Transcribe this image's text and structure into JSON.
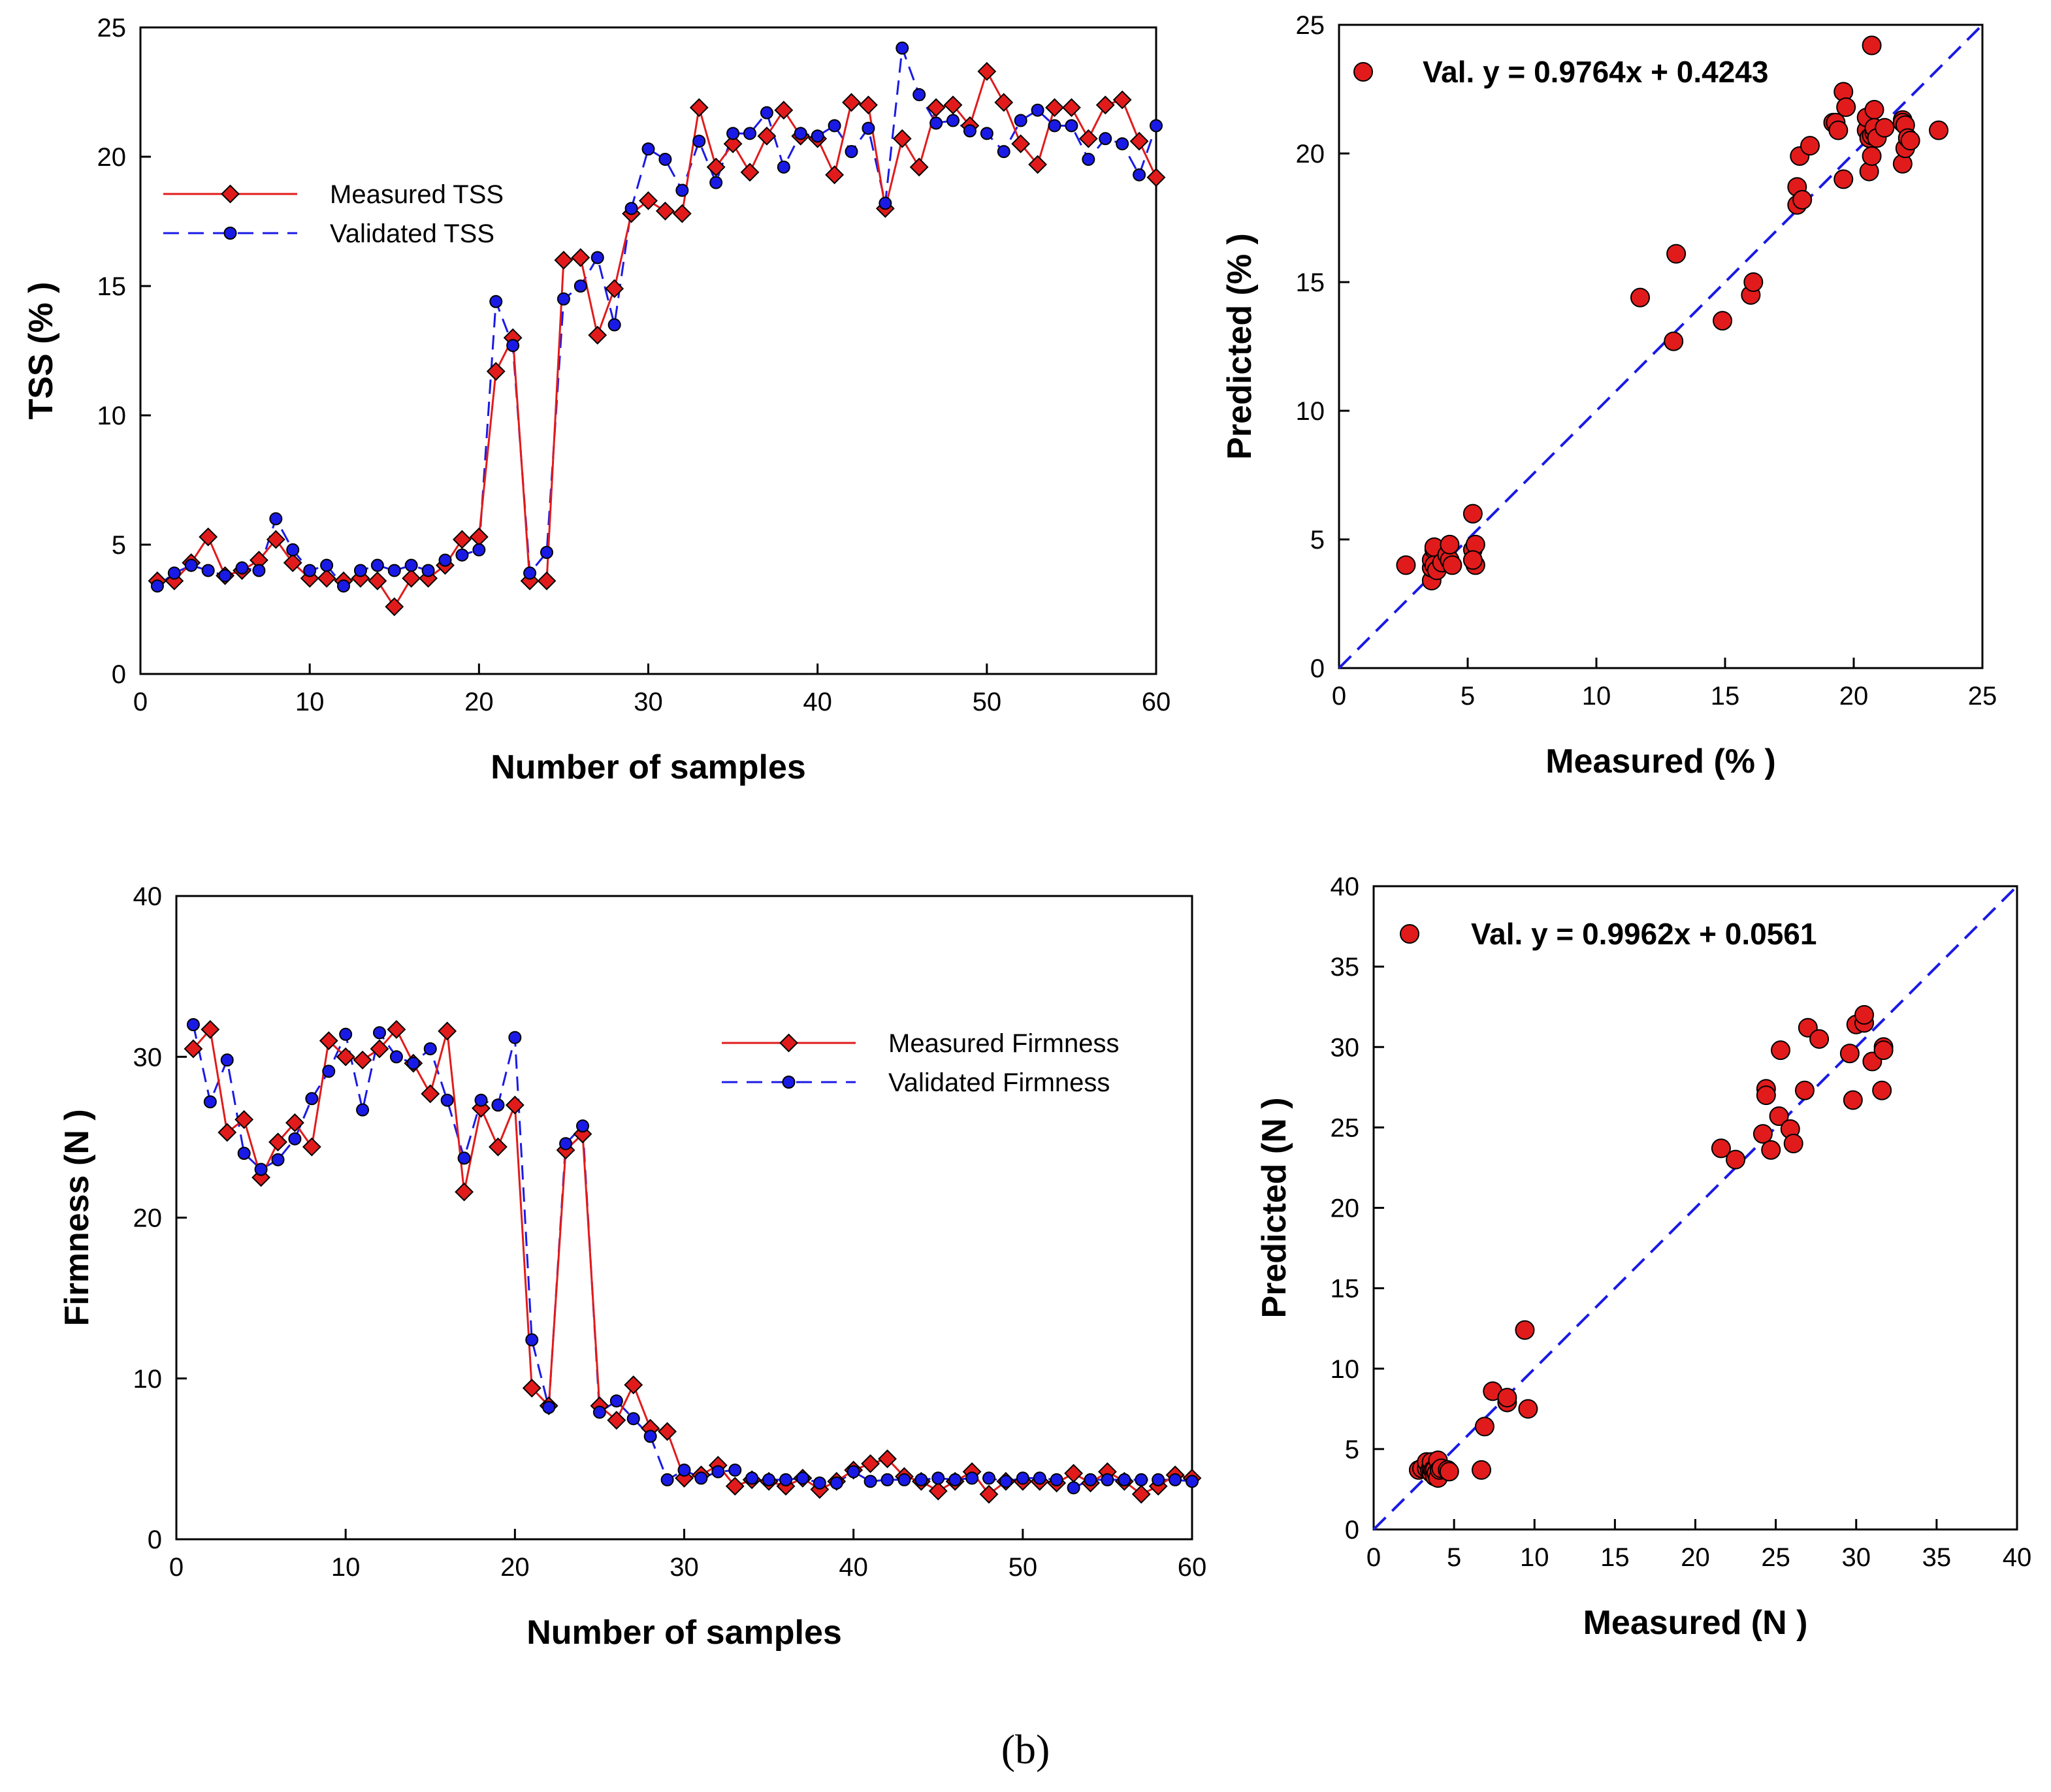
{
  "figure_label": "(b)",
  "colors": {
    "measured": "#e11b1b",
    "validated": "#1a1ae6",
    "marker_edge": "#000000"
  },
  "chart_data": [
    {
      "id": "tss_series",
      "type": "line",
      "xlabel": "Number of samples",
      "ylabel": "TSS (% )",
      "xlim": [
        0,
        60
      ],
      "ylim": [
        0,
        25
      ],
      "xticks": [
        0,
        10,
        20,
        30,
        40,
        50,
        60
      ],
      "yticks": [
        0,
        5,
        10,
        15,
        20,
        25
      ],
      "legend_position": "upper-left",
      "x": [
        1,
        2,
        3,
        4,
        5,
        6,
        7,
        8,
        9,
        10,
        11,
        12,
        13,
        14,
        15,
        16,
        17,
        18,
        19,
        20,
        21,
        22,
        23,
        24,
        25,
        26,
        27,
        28,
        29,
        30,
        31,
        32,
        33,
        34,
        35,
        36,
        37,
        38,
        39,
        40,
        41,
        42,
        43,
        44,
        45,
        46,
        47,
        48,
        49,
        50,
        51,
        52,
        53,
        54,
        55,
        56,
        57,
        58,
        59,
        60
      ],
      "series": [
        {
          "name": "Measured TSS",
          "style": "solid",
          "marker": "diamond",
          "color": "#e11b1b",
          "values": [
            3.6,
            3.6,
            4.3,
            5.3,
            3.8,
            4.0,
            4.4,
            5.2,
            4.3,
            3.7,
            3.7,
            3.6,
            3.7,
            3.6,
            2.6,
            3.7,
            3.7,
            4.2,
            5.2,
            5.3,
            11.7,
            13.0,
            3.6,
            3.6,
            16.0,
            16.1,
            13.1,
            14.9,
            17.8,
            18.3,
            17.9,
            17.8,
            21.9,
            19.6,
            20.5,
            19.4,
            20.8,
            21.8,
            20.8,
            20.7,
            19.3,
            22.1,
            22.0,
            18.0,
            20.7,
            19.6,
            21.9,
            22.0,
            21.2,
            23.3,
            22.1,
            20.5,
            19.7,
            21.9,
            21.9,
            20.7,
            22.0,
            22.2,
            20.6,
            19.2
          ]
        },
        {
          "name": "Validated TSS",
          "style": "dashed",
          "marker": "circle",
          "color": "#1a1ae6",
          "values": [
            3.4,
            3.9,
            4.2,
            4.0,
            3.8,
            4.1,
            4.0,
            6.0,
            4.8,
            4.0,
            4.2,
            3.4,
            4.0,
            4.2,
            4.0,
            4.2,
            4.0,
            4.4,
            4.6,
            4.8,
            14.4,
            12.7,
            3.9,
            4.7,
            14.5,
            15.0,
            16.1,
            13.5,
            18.0,
            20.3,
            19.9,
            18.7,
            20.6,
            19.0,
            20.9,
            20.9,
            21.7,
            19.6,
            20.9,
            20.8,
            21.2,
            20.2,
            21.1,
            18.2,
            24.2,
            22.4,
            21.3,
            21.4,
            21.0,
            20.9,
            20.2,
            21.4,
            21.8,
            21.2,
            21.2,
            19.9,
            20.7,
            20.5,
            19.3,
            21.2
          ]
        }
      ]
    },
    {
      "id": "tss_scatter",
      "type": "scatter",
      "xlabel": "Measured (% )",
      "ylabel": "Predicted (% )",
      "xlim": [
        0,
        25
      ],
      "ylim": [
        0,
        25
      ],
      "xticks": [
        0,
        5,
        10,
        15,
        20,
        25
      ],
      "yticks": [
        0,
        5,
        10,
        15,
        20,
        25
      ],
      "annotation": "Val. y = 0.9764x + 0.4243",
      "fit_line": {
        "slope": 1,
        "intercept": 0,
        "style": "dashed",
        "color": "#1a1ae6"
      },
      "points": [
        [
          2.6,
          4.0
        ],
        [
          3.6,
          3.4
        ],
        [
          3.6,
          3.9
        ],
        [
          3.6,
          4.2
        ],
        [
          3.7,
          4.6
        ],
        [
          3.7,
          4.7
        ],
        [
          3.7,
          4.0
        ],
        [
          3.8,
          3.8
        ],
        [
          4.0,
          4.1
        ],
        [
          4.2,
          4.4
        ],
        [
          4.3,
          4.2
        ],
        [
          4.3,
          4.8
        ],
        [
          4.4,
          4.0
        ],
        [
          5.2,
          6.0
        ],
        [
          5.2,
          4.6
        ],
        [
          5.3,
          4.8
        ],
        [
          5.3,
          4.0
        ],
        [
          5.2,
          4.2
        ],
        [
          11.7,
          14.4
        ],
        [
          13.0,
          12.7
        ],
        [
          13.1,
          16.1
        ],
        [
          14.9,
          13.5
        ],
        [
          16.0,
          14.5
        ],
        [
          16.1,
          15.0
        ],
        [
          17.8,
          18.0
        ],
        [
          17.8,
          18.7
        ],
        [
          17.9,
          19.9
        ],
        [
          18.0,
          18.2
        ],
        [
          18.3,
          20.3
        ],
        [
          19.2,
          21.2
        ],
        [
          19.3,
          21.2
        ],
        [
          19.4,
          20.9
        ],
        [
          19.6,
          19.0
        ],
        [
          19.6,
          22.4
        ],
        [
          19.7,
          21.8
        ],
        [
          20.5,
          20.9
        ],
        [
          20.5,
          21.4
        ],
        [
          20.6,
          19.3
        ],
        [
          20.6,
          20.6
        ],
        [
          20.7,
          20.7
        ],
        [
          20.7,
          19.9
        ],
        [
          20.7,
          24.2
        ],
        [
          20.8,
          21.7
        ],
        [
          20.8,
          20.8
        ],
        [
          20.8,
          21.0
        ],
        [
          20.9,
          20.6
        ],
        [
          21.2,
          21.0
        ],
        [
          21.9,
          19.6
        ],
        [
          21.9,
          21.3
        ],
        [
          21.9,
          21.2
        ],
        [
          22.0,
          20.2
        ],
        [
          22.0,
          21.1
        ],
        [
          22.1,
          20.6
        ],
        [
          22.2,
          20.5
        ],
        [
          23.3,
          20.9
        ]
      ]
    },
    {
      "id": "firmness_series",
      "type": "line",
      "xlabel": "Number of samples",
      "ylabel": "Firmness (N )",
      "xlim": [
        0,
        60
      ],
      "ylim": [
        0,
        40
      ],
      "xticks": [
        0,
        10,
        20,
        30,
        40,
        50,
        60
      ],
      "yticks": [
        0,
        10,
        20,
        30,
        40
      ],
      "legend_position": "upper-right",
      "x": [
        1,
        2,
        3,
        4,
        5,
        6,
        7,
        8,
        9,
        10,
        11,
        12,
        13,
        14,
        15,
        16,
        17,
        18,
        19,
        20,
        21,
        22,
        23,
        24,
        25,
        26,
        27,
        28,
        29,
        30,
        31,
        32,
        33,
        34,
        35,
        36,
        37,
        38,
        39,
        40,
        41,
        42,
        43,
        44,
        45,
        46,
        47,
        48,
        49,
        50,
        51,
        52,
        53,
        54,
        55,
        56,
        57,
        58,
        59,
        60
      ],
      "series": [
        {
          "name": "Measured Firmness",
          "style": "solid",
          "marker": "diamond",
          "color": "#e11b1b",
          "values": [
            30.5,
            31.7,
            25.3,
            26.1,
            22.5,
            24.7,
            25.9,
            24.4,
            31.0,
            30.0,
            29.8,
            30.5,
            31.7,
            29.6,
            27.7,
            31.6,
            21.6,
            26.8,
            24.4,
            27.0,
            9.4,
            8.3,
            24.2,
            25.2,
            8.3,
            7.4,
            9.6,
            6.9,
            6.7,
            3.8,
            4.0,
            4.6,
            3.3,
            3.7,
            3.6,
            3.3,
            3.8,
            3.1,
            3.6,
            4.3,
            4.7,
            5.0,
            3.9,
            3.6,
            3.0,
            3.6,
            4.2,
            2.8,
            3.6,
            3.6,
            3.6,
            3.5,
            4.1,
            3.5,
            4.2,
            3.6,
            2.8,
            3.3,
            4.0,
            3.8
          ]
        },
        {
          "name": "Validated Firmness",
          "style": "dashed",
          "marker": "circle",
          "color": "#1a1ae6",
          "values": [
            32.0,
            27.2,
            29.8,
            24.0,
            23.0,
            23.6,
            24.9,
            27.4,
            29.1,
            31.4,
            26.7,
            31.5,
            30.0,
            29.6,
            30.5,
            27.3,
            23.7,
            27.3,
            27.0,
            31.2,
            12.4,
            8.2,
            24.6,
            25.7,
            7.9,
            8.6,
            7.5,
            6.4,
            3.7,
            4.3,
            3.8,
            4.2,
            4.3,
            3.8,
            3.7,
            3.7,
            3.8,
            3.5,
            3.5,
            4.2,
            3.6,
            3.7,
            3.7,
            3.7,
            3.8,
            3.7,
            3.8,
            3.8,
            3.6,
            3.8,
            3.8,
            3.7,
            3.2,
            3.7,
            3.7,
            3.7,
            3.7,
            3.7,
            3.7,
            3.6
          ]
        }
      ]
    },
    {
      "id": "firmness_scatter",
      "type": "scatter",
      "xlabel": "Measured (N )",
      "ylabel": "Predicted (N )",
      "xlim": [
        0,
        40
      ],
      "ylim": [
        0,
        40
      ],
      "xticks": [
        0,
        5,
        10,
        15,
        20,
        25,
        30,
        35,
        40
      ],
      "yticks": [
        0,
        5,
        10,
        15,
        20,
        25,
        30,
        35,
        40
      ],
      "annotation": "Val. y = 0.9962x + 0.0561",
      "fit_line": {
        "slope": 1,
        "intercept": 0,
        "style": "dashed",
        "color": "#1a1ae6"
      },
      "points": [
        [
          2.8,
          3.7
        ],
        [
          3.0,
          3.8
        ],
        [
          3.3,
          3.8
        ],
        [
          3.3,
          4.2
        ],
        [
          3.5,
          3.7
        ],
        [
          3.6,
          3.5
        ],
        [
          3.6,
          3.8
        ],
        [
          3.6,
          4.2
        ],
        [
          3.7,
          3.7
        ],
        [
          3.8,
          3.7
        ],
        [
          3.8,
          3.3
        ],
        [
          3.9,
          3.5
        ],
        [
          4.0,
          3.2
        ],
        [
          4.0,
          4.3
        ],
        [
          4.1,
          3.7
        ],
        [
          4.2,
          3.8
        ],
        [
          4.6,
          3.7
        ],
        [
          4.7,
          3.6
        ],
        [
          6.7,
          3.7
        ],
        [
          6.9,
          6.4
        ],
        [
          7.4,
          8.6
        ],
        [
          8.3,
          7.9
        ],
        [
          8.3,
          8.2
        ],
        [
          9.4,
          12.4
        ],
        [
          9.6,
          7.5
        ],
        [
          21.6,
          23.7
        ],
        [
          22.5,
          23.0
        ],
        [
          24.2,
          24.6
        ],
        [
          24.4,
          27.4
        ],
        [
          24.4,
          27.0
        ],
        [
          24.7,
          23.6
        ],
        [
          25.2,
          25.7
        ],
        [
          25.3,
          29.8
        ],
        [
          25.9,
          24.9
        ],
        [
          26.1,
          24.0
        ],
        [
          26.8,
          27.3
        ],
        [
          27.0,
          31.2
        ],
        [
          27.7,
          30.5
        ],
        [
          29.6,
          29.6
        ],
        [
          29.8,
          26.7
        ],
        [
          30.0,
          31.4
        ],
        [
          30.5,
          31.5
        ],
        [
          30.5,
          32.0
        ],
        [
          31.0,
          29.1
        ],
        [
          31.6,
          27.3
        ],
        [
          31.7,
          30.0
        ],
        [
          31.7,
          29.8
        ]
      ]
    }
  ]
}
